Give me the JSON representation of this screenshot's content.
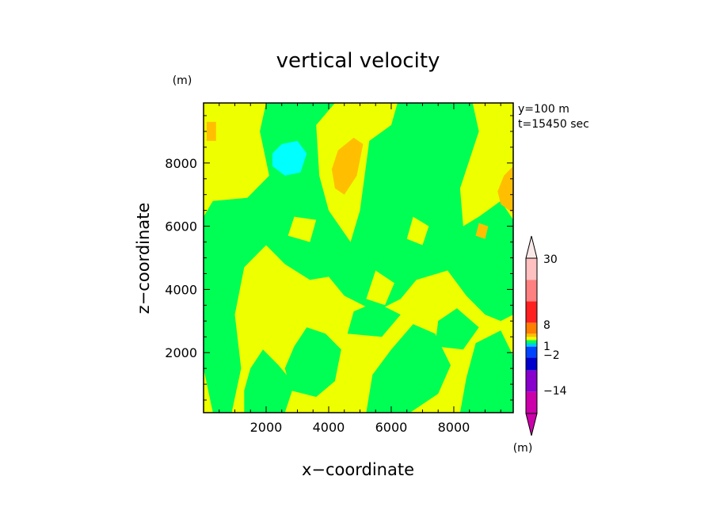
{
  "chart_data": {
    "type": "heatmap",
    "title": "vertical velocity",
    "xlabel": "x−coordinate",
    "ylabel": "z−coordinate",
    "y_unit": "(m)",
    "colorbar_unit": "(m)",
    "annotations": [
      "y=100 m",
      "t=15450 sec"
    ],
    "xlim": [
      0,
      9900
    ],
    "ylim": [
      100,
      9900
    ],
    "x_ticks": [
      2000,
      4000,
      6000,
      8000
    ],
    "x_tick_labels": [
      "2000",
      "4000",
      "6000",
      "8000"
    ],
    "y_ticks": [
      2000,
      4000,
      6000,
      8000
    ],
    "y_tick_labels": [
      "2000",
      "4000",
      "6000",
      "8000"
    ],
    "colorbar": {
      "labels": [
        {
          "value": 30,
          "text": "30"
        },
        {
          "value": 8,
          "text": "8"
        },
        {
          "value": 1,
          "text": "1"
        },
        {
          "value": -2,
          "text": "−2"
        },
        {
          "value": -14,
          "text": "−14"
        }
      ],
      "colors": [
        "#cc00aa",
        "#8800cc",
        "#0000cc",
        "#0044ff",
        "#00c8ff",
        "#00ff55",
        "#eeff00",
        "#ffbf00",
        "#ff7f00",
        "#ff2020",
        "#ff8080",
        "#ffc0c0",
        "#f8e8e8"
      ]
    },
    "colors": {
      "green": "#00ff55",
      "yellow": "#eeff00",
      "orange": "#ffbf00",
      "cyan": "#00ffff"
    },
    "regions": [
      {
        "color": "yellow",
        "points": [
          [
            0,
            100
          ],
          [
            9900,
            100
          ],
          [
            9900,
            9900
          ],
          [
            0,
            9900
          ]
        ]
      },
      {
        "color": "green",
        "points": [
          [
            300,
            100
          ],
          [
            900,
            100
          ],
          [
            1200,
            1500
          ],
          [
            1000,
            3200
          ],
          [
            1300,
            4700
          ],
          [
            2000,
            5400
          ],
          [
            2600,
            4800
          ],
          [
            3400,
            4300
          ],
          [
            4000,
            4400
          ],
          [
            4500,
            3800
          ],
          [
            5500,
            3300
          ],
          [
            6300,
            3700
          ],
          [
            6800,
            4300
          ],
          [
            7800,
            4600
          ],
          [
            8400,
            3800
          ],
          [
            9000,
            3200
          ],
          [
            9500,
            3000
          ],
          [
            9900,
            3200
          ],
          [
            9900,
            6200
          ],
          [
            9500,
            6800
          ],
          [
            8800,
            6300
          ],
          [
            8300,
            6000
          ],
          [
            8200,
            7200
          ],
          [
            8800,
            9000
          ],
          [
            8600,
            9900
          ],
          [
            6200,
            9900
          ],
          [
            6000,
            9200
          ],
          [
            5300,
            8700
          ],
          [
            5000,
            6500
          ],
          [
            4700,
            5500
          ],
          [
            4000,
            6500
          ],
          [
            3700,
            7600
          ],
          [
            3600,
            9200
          ],
          [
            4200,
            9900
          ],
          [
            2000,
            9900
          ],
          [
            1800,
            9000
          ],
          [
            2100,
            7600
          ],
          [
            1400,
            6900
          ],
          [
            300,
            6800
          ],
          [
            0,
            6300
          ],
          [
            0,
            1500
          ]
        ]
      },
      {
        "color": "green",
        "points": [
          [
            1300,
            100
          ],
          [
            2600,
            100
          ],
          [
            2900,
            1000
          ],
          [
            2400,
            1600
          ],
          [
            1900,
            2100
          ],
          [
            1500,
            1500
          ],
          [
            1300,
            800
          ]
        ]
      },
      {
        "color": "green",
        "points": [
          [
            2800,
            800
          ],
          [
            3600,
            600
          ],
          [
            4200,
            1100
          ],
          [
            4400,
            2100
          ],
          [
            3900,
            2600
          ],
          [
            3300,
            2800
          ],
          [
            2900,
            2200
          ],
          [
            2600,
            1500
          ]
        ]
      },
      {
        "color": "green",
        "points": [
          [
            4600,
            2600
          ],
          [
            5700,
            2500
          ],
          [
            6300,
            3200
          ],
          [
            5500,
            3600
          ],
          [
            4800,
            3300
          ]
        ]
      },
      {
        "color": "green",
        "points": [
          [
            5200,
            100
          ],
          [
            6600,
            100
          ],
          [
            7500,
            700
          ],
          [
            7900,
            1600
          ],
          [
            7400,
            2600
          ],
          [
            6700,
            2900
          ],
          [
            6000,
            2100
          ],
          [
            5400,
            1300
          ]
        ]
      },
      {
        "color": "green",
        "points": [
          [
            8200,
            100
          ],
          [
            9900,
            100
          ],
          [
            9900,
            1900
          ],
          [
            9500,
            2700
          ],
          [
            8700,
            2300
          ],
          [
            8400,
            1200
          ]
        ]
      },
      {
        "color": "green",
        "points": [
          [
            7400,
            2200
          ],
          [
            8300,
            2100
          ],
          [
            8800,
            2800
          ],
          [
            8100,
            3400
          ],
          [
            7500,
            3000
          ]
        ]
      },
      {
        "color": "yellow",
        "points": [
          [
            4400,
            300
          ],
          [
            5000,
            300
          ],
          [
            5200,
            1200
          ],
          [
            4800,
            1700
          ],
          [
            4400,
            1100
          ]
        ]
      },
      {
        "color": "yellow",
        "points": [
          [
            5200,
            3700
          ],
          [
            5800,
            3500
          ],
          [
            6100,
            4200
          ],
          [
            5500,
            4600
          ]
        ]
      },
      {
        "color": "yellow",
        "points": [
          [
            2600,
            3300
          ],
          [
            3200,
            3100
          ],
          [
            3400,
            3800
          ],
          [
            2800,
            4000
          ]
        ]
      },
      {
        "color": "yellow",
        "points": [
          [
            2700,
            5700
          ],
          [
            3400,
            5500
          ],
          [
            3600,
            6200
          ],
          [
            2900,
            6300
          ]
        ]
      },
      {
        "color": "yellow",
        "points": [
          [
            6500,
            5600
          ],
          [
            7000,
            5400
          ],
          [
            7200,
            6000
          ],
          [
            6700,
            6300
          ]
        ]
      },
      {
        "color": "yellow",
        "points": [
          [
            500,
            9300
          ],
          [
            900,
            9000
          ],
          [
            1000,
            9600
          ],
          [
            600,
            9800
          ]
        ]
      },
      {
        "color": "orange",
        "points": [
          [
            4200,
            7200
          ],
          [
            4500,
            7000
          ],
          [
            4900,
            7600
          ],
          [
            5100,
            8600
          ],
          [
            4800,
            8800
          ],
          [
            4300,
            8400
          ],
          [
            4100,
            7800
          ]
        ]
      },
      {
        "color": "orange",
        "points": [
          [
            9500,
            6700
          ],
          [
            9900,
            6400
          ],
          [
            9900,
            7900
          ],
          [
            9600,
            7600
          ],
          [
            9400,
            7100
          ]
        ]
      },
      {
        "color": "orange",
        "points": [
          [
            100,
            8700
          ],
          [
            400,
            8700
          ],
          [
            400,
            9300
          ],
          [
            100,
            9300
          ]
        ]
      },
      {
        "color": "orange",
        "points": [
          [
            8700,
            5700
          ],
          [
            9000,
            5600
          ],
          [
            9100,
            6000
          ],
          [
            8800,
            6100
          ]
        ]
      },
      {
        "color": "cyan",
        "points": [
          [
            2200,
            7900
          ],
          [
            2600,
            7600
          ],
          [
            3100,
            7700
          ],
          [
            3300,
            8300
          ],
          [
            3000,
            8700
          ],
          [
            2500,
            8600
          ],
          [
            2200,
            8300
          ]
        ]
      }
    ]
  }
}
